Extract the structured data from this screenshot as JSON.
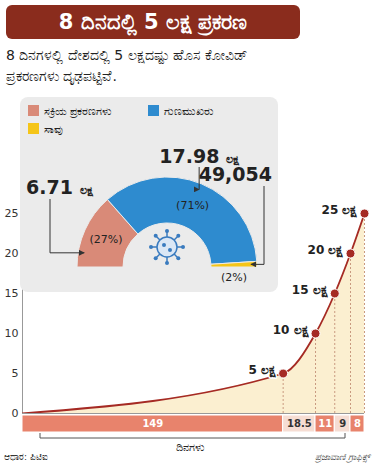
{
  "title": "8 ದಿನದಲ್ಲಿ 5 ಲಕ್ಷ ಪ್ರಕರಣ",
  "subtitle": "8 ದಿನಗಳಲ್ಲಿ ದೇಶದಲ್ಲಿ 5 ಲಕ್ಷದಷ್ಟು ಹೊಸ ಕೋವಿಡ್ ಪ್ರಕರಣಗಳು ದೃಢಪಟ್ಟಿವೆ.",
  "source": "ಆಧಾರ: ಪಿಟಿಐ",
  "credit": "ಪ್ರಜಾವಾಣಿ ಗ್ರಾಫಿಕ್ಸ್",
  "chart_data": [
    {
      "type": "pie",
      "categories": [
        "ಸಕ್ರಿಯ ಪ್ರಕರಣಗಳು",
        "ಗುಣಮುಖರು",
        "ಸಾವು"
      ],
      "values": [
        27,
        71,
        2
      ],
      "value_labels": [
        "(27%)",
        "(71%)",
        "(2%)"
      ],
      "count_labels": [
        "6.71 ಲಕ್ಷ",
        "17.98 ಲಕ್ಷ",
        "49,054"
      ],
      "colors": [
        "#d98a78",
        "#2e8bcf",
        "#f5c518"
      ],
      "legend": "top-left",
      "data_labels": true
    },
    {
      "type": "line",
      "values": [
        0,
        5,
        10,
        15,
        20,
        25
      ],
      "value_labels": [
        null,
        "5 ಲಕ್ಷ",
        "10 ಲಕ್ಷ",
        "15 ಲಕ್ಷ",
        "20 ಲಕ್ಷ",
        "25 ಲಕ್ಷ"
      ],
      "intervals": [
        0,
        149,
        18.5,
        11,
        9,
        8
      ],
      "interval_label": "ದಿನಗಳು",
      "xlim": [
        0,
        195.5
      ],
      "ylim": [
        0,
        25
      ],
      "yticks": [
        0,
        5,
        10,
        15,
        20,
        25
      ],
      "tick_labels": "y",
      "color": "#a52a24",
      "marker": "circle",
      "data_labels": true
    }
  ]
}
